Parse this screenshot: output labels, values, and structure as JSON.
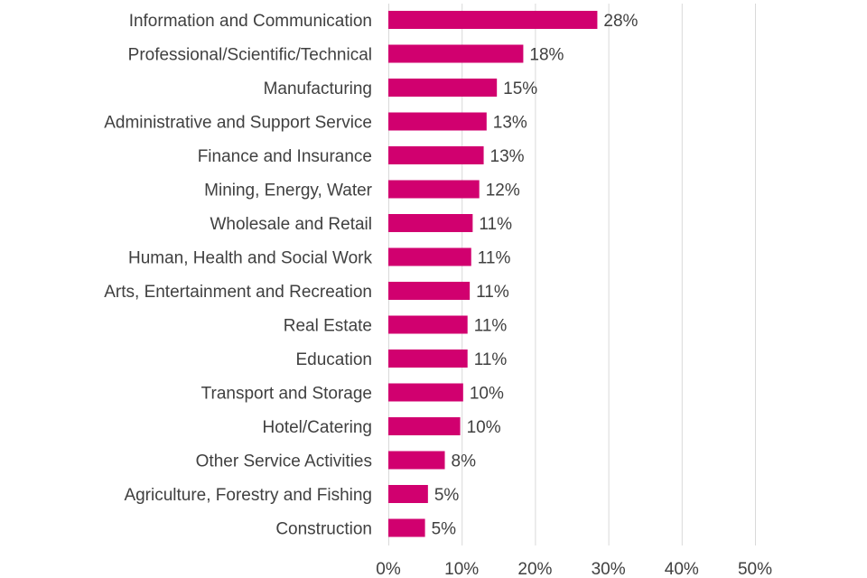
{
  "chart_data": {
    "type": "bar",
    "orientation": "horizontal",
    "title": "",
    "xlabel": "",
    "ylabel": "",
    "xlim": [
      0,
      50
    ],
    "grid": true,
    "categories": [
      "Information and Communication",
      "Professional/Scientific/Technical",
      "Manufacturing",
      "Administrative and Support Service",
      "Finance and Insurance",
      "Mining, Energy, Water",
      "Wholesale and Retail",
      "Human, Health and Social Work",
      "Arts, Entertainment and Recreation",
      "Real Estate",
      "Education",
      "Transport and Storage",
      "Hotel/Catering",
      "Other Service Activities",
      "Agriculture, Forestry and Fishing",
      "Construction"
    ],
    "values": [
      28.5,
      18.4,
      14.8,
      13.4,
      13.0,
      12.4,
      11.5,
      11.3,
      11.1,
      10.8,
      10.8,
      10.2,
      9.8,
      7.7,
      5.4,
      5.0
    ],
    "value_labels": [
      "28%",
      "18%",
      "15%",
      "13%",
      "13%",
      "12%",
      "11%",
      "11%",
      "11%",
      "11%",
      "11%",
      "10%",
      "10%",
      "8%",
      "5%",
      "5%"
    ],
    "tick_values": [
      0,
      10,
      20,
      30,
      40,
      50
    ],
    "tick_labels": [
      "0%",
      "10%",
      "20%",
      "30%",
      "40%",
      "50%"
    ],
    "bar_color": "#d1006f"
  }
}
